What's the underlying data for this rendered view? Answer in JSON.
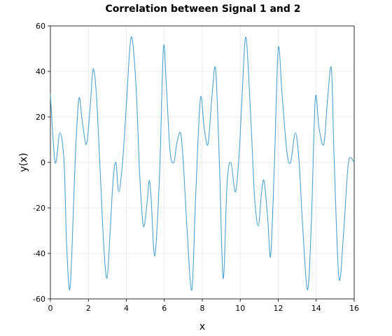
{
  "chart_data": {
    "type": "line",
    "title": "Correlation between Signal 1 and 2",
    "xlabel": "x",
    "ylabel": "y(x)",
    "xlim": [
      0,
      16
    ],
    "ylim": [
      -60,
      60
    ],
    "x_ticks": [
      "0",
      "2",
      "4",
      "6",
      "8",
      "10",
      "12",
      "14",
      "16"
    ],
    "y_ticks": [
      "-60",
      "-40",
      "-20",
      "0",
      "20",
      "40",
      "60"
    ],
    "grid": true,
    "legend": "none",
    "line_color": "#4ba3cf",
    "series": [
      {
        "x": [
          0,
          0.25,
          0.5,
          0.72,
          0.85,
          1.0,
          1.13,
          1.3,
          1.5,
          1.68,
          1.9,
          2.1,
          2.25,
          2.42,
          2.6,
          2.8,
          2.98,
          3.15,
          3.3,
          3.45,
          3.6,
          3.8,
          4.0,
          4.25,
          4.5,
          4.7,
          4.9,
          5.1,
          5.2,
          5.3,
          5.5,
          5.75,
          5.95,
          6.1,
          6.3,
          6.5,
          6.65,
          6.85,
          7.0,
          7.2,
          7.45,
          7.65,
          7.9,
          8.1,
          8.3,
          8.5,
          8.7,
          8.9,
          9.1,
          9.3,
          9.5,
          9.75,
          9.95,
          10.1,
          10.3,
          10.55,
          10.75,
          10.95,
          11.1,
          11.25,
          11.45,
          11.6,
          11.8,
          12.0,
          12.2,
          12.45,
          12.65,
          12.9,
          13.1,
          13.3,
          13.55,
          13.75,
          13.95,
          14.15,
          14.4,
          14.6,
          14.8,
          14.95,
          15.2,
          15.45,
          15.7,
          16.0
        ],
        "y": [
          30,
          0,
          13,
          0,
          -35,
          -56,
          -40,
          0,
          28,
          18,
          8,
          25,
          41,
          30,
          0,
          -35,
          -51,
          -30,
          -8,
          0,
          -13,
          0,
          25,
          55,
          35,
          -5,
          -28,
          -17,
          -8,
          -15,
          -41,
          -5,
          50,
          35,
          5,
          0,
          8,
          13,
          0,
          -30,
          -56,
          -15,
          28,
          15,
          8,
          28,
          41,
          0,
          -51,
          -10,
          0,
          -13,
          5,
          30,
          55,
          20,
          -15,
          -28,
          -15,
          -8,
          -25,
          -41,
          0,
          50,
          30,
          5,
          0,
          13,
          0,
          -30,
          -56,
          -25,
          28,
          15,
          8,
          28,
          41,
          0,
          -51,
          -30,
          0,
          0
        ]
      }
    ]
  }
}
